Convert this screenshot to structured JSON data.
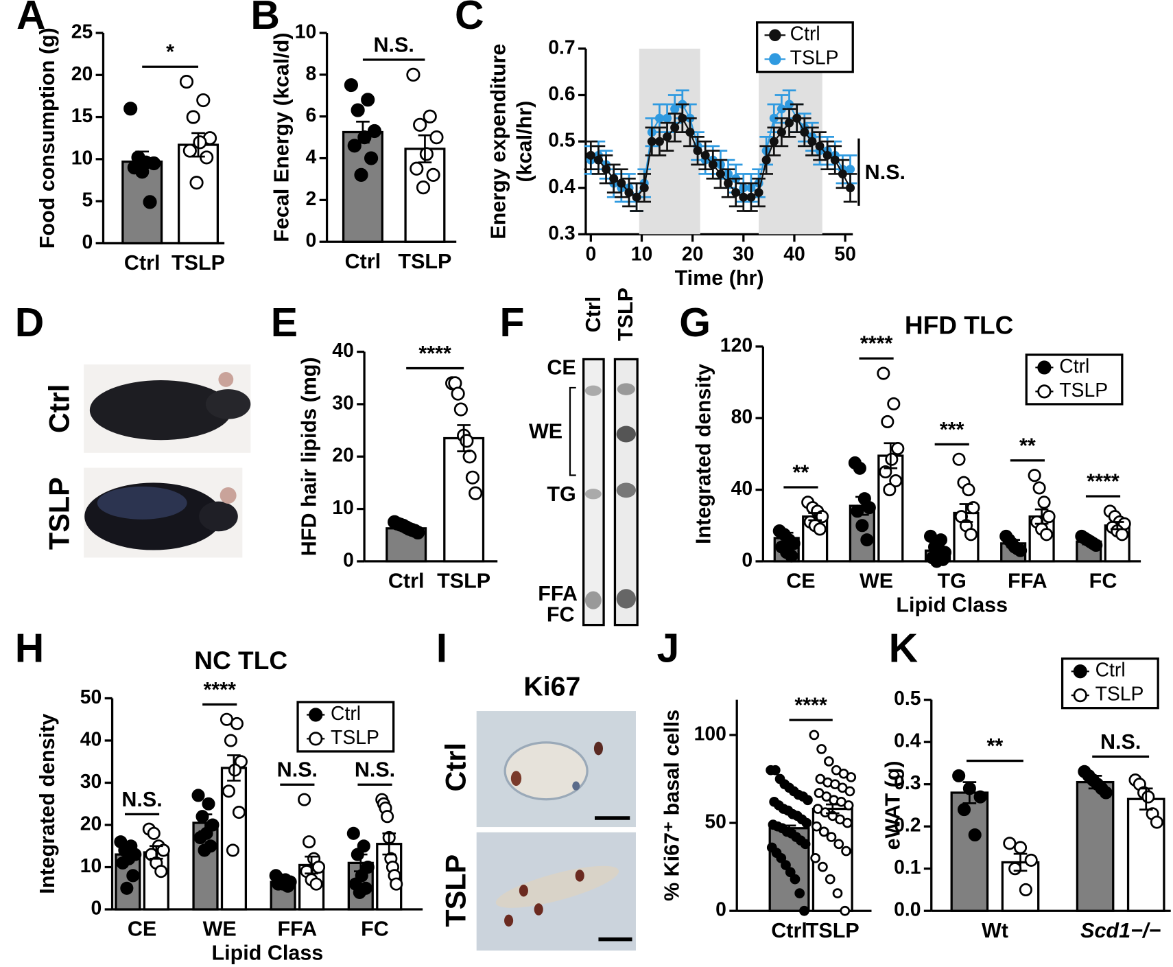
{
  "panel_labels": [
    "A",
    "B",
    "C",
    "D",
    "E",
    "F",
    "G",
    "H",
    "I",
    "J",
    "K"
  ],
  "mouse_photos": {
    "labels": [
      "Ctrl",
      "TSLP"
    ]
  },
  "tlc_plate": {
    "lanes": [
      "Ctrl",
      "TSLP"
    ],
    "bands": [
      "CE",
      "WE",
      "TG",
      "FFA",
      "FC"
    ]
  },
  "ki67_images": {
    "title": "Ki67",
    "labels": [
      "Ctrl",
      "TSLP"
    ]
  },
  "chart_data": [
    {
      "type": "bar",
      "ylabel": "Food consumption (g)",
      "categories": [
        "Ctrl",
        "TSLP"
      ],
      "values": [
        9.7,
        11.7
      ],
      "errors": [
        1.2,
        1.4
      ],
      "colors": [
        "#808080",
        "#ffffff"
      ],
      "markers": [
        "filled",
        "open"
      ],
      "points": [
        [
          16,
          10.2,
          9.6,
          9.5,
          9.0,
          8.5,
          4.9
        ],
        [
          19.2,
          17.0,
          15.0,
          12.5,
          12.0,
          11.0,
          10.2,
          7.2
        ]
      ],
      "significance": "*",
      "ylim": [
        0,
        25
      ],
      "yticks": [
        0,
        5,
        10,
        15,
        20,
        25
      ]
    },
    {
      "type": "bar",
      "ylabel": "Fecal Energy (kcal/d)",
      "categories": [
        "Ctrl",
        "TSLP"
      ],
      "values": [
        5.25,
        4.45
      ],
      "errors": [
        0.5,
        0.65
      ],
      "colors": [
        "#808080",
        "#ffffff"
      ],
      "markers": [
        "filled",
        "open"
      ],
      "points": [
        [
          7.5,
          6.8,
          6.3,
          5.3,
          5.0,
          4.6,
          4.0,
          3.2
        ],
        [
          8.0,
          6.0,
          5.6,
          5.0,
          4.2,
          3.5,
          3.2,
          2.6
        ]
      ],
      "significance": "N.S.",
      "ylim": [
        0,
        10
      ],
      "yticks": [
        0,
        2,
        4,
        6,
        8,
        10
      ]
    },
    {
      "type": "line",
      "ylabel": [
        "Energy expenditure",
        "(kcal/hr)"
      ],
      "xlabel": "Time (hr)",
      "annotation": "N.S.",
      "x": [
        0,
        1.5,
        3,
        4.5,
        6,
        7.5,
        9,
        10.5,
        12,
        13.5,
        15,
        16.5,
        18,
        19.5,
        21,
        22.5,
        24,
        25.5,
        27,
        28.5,
        30,
        31.5,
        33,
        34.5,
        36,
        37.5,
        39,
        40.5,
        42,
        43.5,
        45,
        46.5,
        48,
        49.5,
        51
      ],
      "series": [
        {
          "name": "Ctrl",
          "color": "#111111",
          "error": 0.03,
          "values": [
            0.47,
            0.46,
            0.44,
            0.42,
            0.41,
            0.39,
            0.38,
            0.4,
            0.5,
            0.5,
            0.51,
            0.53,
            0.55,
            0.52,
            0.48,
            0.47,
            0.45,
            0.43,
            0.41,
            0.39,
            0.38,
            0.38,
            0.39,
            0.46,
            0.5,
            0.52,
            0.54,
            0.55,
            0.52,
            0.5,
            0.49,
            0.47,
            0.46,
            0.43,
            0.4
          ]
        },
        {
          "name": "TSLP",
          "color": "#2f9ae0",
          "error": 0.03,
          "values": [
            0.46,
            0.47,
            0.45,
            0.41,
            0.4,
            0.4,
            0.38,
            0.41,
            0.52,
            0.55,
            0.55,
            0.57,
            0.58,
            0.55,
            0.49,
            0.46,
            0.46,
            0.45,
            0.43,
            0.42,
            0.4,
            0.4,
            0.41,
            0.48,
            0.55,
            0.57,
            0.58,
            0.55,
            0.53,
            0.51,
            0.48,
            0.48,
            0.47,
            0.44,
            0.44
          ]
        }
      ],
      "shaded": [
        [
          9.5,
          21.5
        ],
        [
          33,
          45.5
        ]
      ],
      "legend": "top-right",
      "xlim": [
        -1,
        51.5
      ],
      "xticks": [
        0,
        10,
        20,
        30,
        40,
        50
      ],
      "ylim": [
        0.3,
        0.7
      ],
      "yticks": [
        0.3,
        0.4,
        0.5,
        0.6,
        0.7
      ]
    },
    {
      "type": "bar",
      "ylabel": "HFD hair lipids (mg)",
      "categories": [
        "Ctrl",
        "TSLP"
      ],
      "values": [
        6.3,
        23.5
      ],
      "errors": [
        0.3,
        2.5
      ],
      "colors": [
        "#808080",
        "#ffffff"
      ],
      "markers": [
        "filled",
        "open"
      ],
      "points": [
        [
          7.5,
          7.2,
          7.0,
          6.8,
          6.5,
          6.2,
          6.0,
          5.8,
          5.5
        ],
        [
          34,
          34,
          32,
          29,
          24,
          23,
          20,
          16,
          13
        ]
      ],
      "significance": "****",
      "ylim": [
        0,
        40
      ],
      "yticks": [
        0,
        10,
        20,
        30,
        40
      ]
    },
    {
      "type": "grouped_bar",
      "title": "HFD TLC",
      "ylabel": "Integrated density",
      "xlabel": "Lipid Class",
      "categories": [
        "CE",
        "WE",
        "TG",
        "FFA",
        "FC"
      ],
      "series": [
        {
          "name": "Ctrl",
          "color": "#808080",
          "marker": "filled",
          "values": [
            13,
            31,
            6,
            10,
            11
          ],
          "errors": [
            3,
            5,
            2.5,
            2,
            1.5
          ],
          "points": [
            [
              17,
              15,
              12,
              10,
              8,
              5,
              3
            ],
            [
              55,
              52,
              35,
              30,
              28,
              20,
              12
            ],
            [
              14,
              12,
              8,
              5,
              3,
              2,
              1,
              0
            ],
            [
              14,
              12,
              10,
              8,
              7,
              6
            ],
            [
              14,
              13,
              12,
              11,
              10,
              9
            ]
          ]
        },
        {
          "name": "TSLP",
          "color": "#ffffff",
          "marker": "open",
          "values": [
            25,
            59,
            27,
            25,
            20
          ],
          "errors": [
            2,
            7,
            5,
            4,
            2
          ],
          "points": [
            [
              33,
              30,
              28,
              25,
              22,
              20,
              18
            ],
            [
              105,
              88,
              78,
              63,
              57,
              50,
              45,
              40
            ],
            [
              57,
              44,
              40,
              30,
              25,
              20,
              15
            ],
            [
              48,
              41,
              33,
              25,
              22,
              18,
              15
            ],
            [
              28,
              25,
              22,
              21,
              19,
              17,
              15
            ]
          ]
        }
      ],
      "significance": [
        "**",
        "****",
        "***",
        "**",
        "****"
      ],
      "legend": "top-right",
      "ylim": [
        0,
        120
      ],
      "yticks": [
        0,
        40,
        80,
        120
      ]
    },
    {
      "type": "grouped_bar",
      "title": "NC TLC",
      "ylabel": "Integrated density",
      "xlabel": "Lipid Class",
      "categories": [
        "CE",
        "WE",
        "FFA",
        "FC"
      ],
      "series": [
        {
          "name": "Ctrl",
          "color": "#808080",
          "marker": "filled",
          "values": [
            13,
            20.5,
            6.5,
            11
          ],
          "errors": [
            1,
            2,
            0.5,
            2
          ],
          "points": [
            [
              16,
              15,
              14,
              13,
              12,
              11,
              8,
              5
            ],
            [
              27,
              25,
              22,
              20,
              18,
              17,
              15,
              14
            ],
            [
              8,
              7,
              7,
              6.5,
              6,
              6,
              5.5
            ],
            [
              18,
              15,
              13,
              10,
              8,
              6,
              5,
              4
            ]
          ]
        },
        {
          "name": "TSLP",
          "color": "#ffffff",
          "marker": "open",
          "values": [
            13.5,
            33.5,
            10.5,
            15.5
          ],
          "errors": [
            1.5,
            3,
            2,
            2.5
          ],
          "points": [
            [
              19,
              18,
              15,
              14,
              13,
              11,
              9
            ],
            [
              45,
              44,
              40,
              35,
              33,
              28,
              23,
              14
            ],
            [
              26,
              16,
              12,
              10,
              9,
              7,
              6
            ],
            [
              26,
              25,
              24,
              22,
              17,
              12,
              10,
              8,
              6
            ]
          ]
        }
      ],
      "significance": [
        "N.S.",
        "****",
        "N.S.",
        "N.S."
      ],
      "legend": "top-right",
      "ylim": [
        0,
        50
      ],
      "yticks": [
        0,
        10,
        20,
        30,
        40,
        50
      ]
    },
    {
      "type": "bar",
      "ylabel": "% Ki67⁺ basal cells",
      "categories": [
        "Ctrl",
        "TSLP"
      ],
      "values": [
        47,
        58
      ],
      "errors": [
        1.5,
        2.5
      ],
      "colors": [
        "#808080",
        "#ffffff"
      ],
      "markers": [
        "filled",
        "open"
      ],
      "points": [
        [
          80,
          80,
          75,
          72,
          70,
          68,
          66,
          65,
          63,
          62,
          60,
          58,
          57,
          55,
          54,
          52,
          50,
          49,
          48,
          47,
          45,
          44,
          42,
          40,
          38,
          36,
          33,
          30,
          26,
          22,
          18,
          10,
          0
        ],
        [
          100,
          92,
          85,
          80,
          78,
          76,
          75,
          73,
          72,
          70,
          68,
          67,
          65,
          63,
          62,
          60,
          58,
          56,
          54,
          52,
          50,
          48,
          45,
          42,
          38,
          34,
          30,
          25,
          18,
          10,
          0
        ]
      ],
      "significance": "****",
      "ylim": [
        0,
        120
      ],
      "yticks": [
        0,
        50,
        100
      ]
    },
    {
      "type": "grouped_bar",
      "ylabel": "eWAT (g)",
      "categories": [
        "Wt",
        "Scd1−/−"
      ],
      "series": [
        {
          "name": "Ctrl",
          "color": "#808080",
          "marker": "filled",
          "values": [
            0.28,
            0.305
          ],
          "errors": [
            0.025,
            0.015
          ],
          "points": [
            [
              0.32,
              0.29,
              0.27,
              0.24,
              0.18
            ],
            [
              0.33,
              0.32,
              0.31,
              0.3,
              0.29,
              0.28
            ]
          ]
        },
        {
          "name": "TSLP",
          "color": "#ffffff",
          "marker": "open",
          "values": [
            0.115,
            0.265
          ],
          "errors": [
            0.02,
            0.025
          ],
          "points": [
            [
              0.16,
              0.15,
              0.12,
              0.1,
              0.05
            ],
            [
              0.31,
              0.3,
              0.28,
              0.27,
              0.23,
              0.21
            ]
          ]
        }
      ],
      "significance": [
        "**",
        "N.S."
      ],
      "legend": "top-right",
      "ylim": [
        0,
        0.5
      ],
      "yticks": [
        {
          "value": 0,
          "label": "0.0"
        },
        0.1,
        0.2,
        0.3,
        0.4,
        0.5
      ]
    }
  ]
}
